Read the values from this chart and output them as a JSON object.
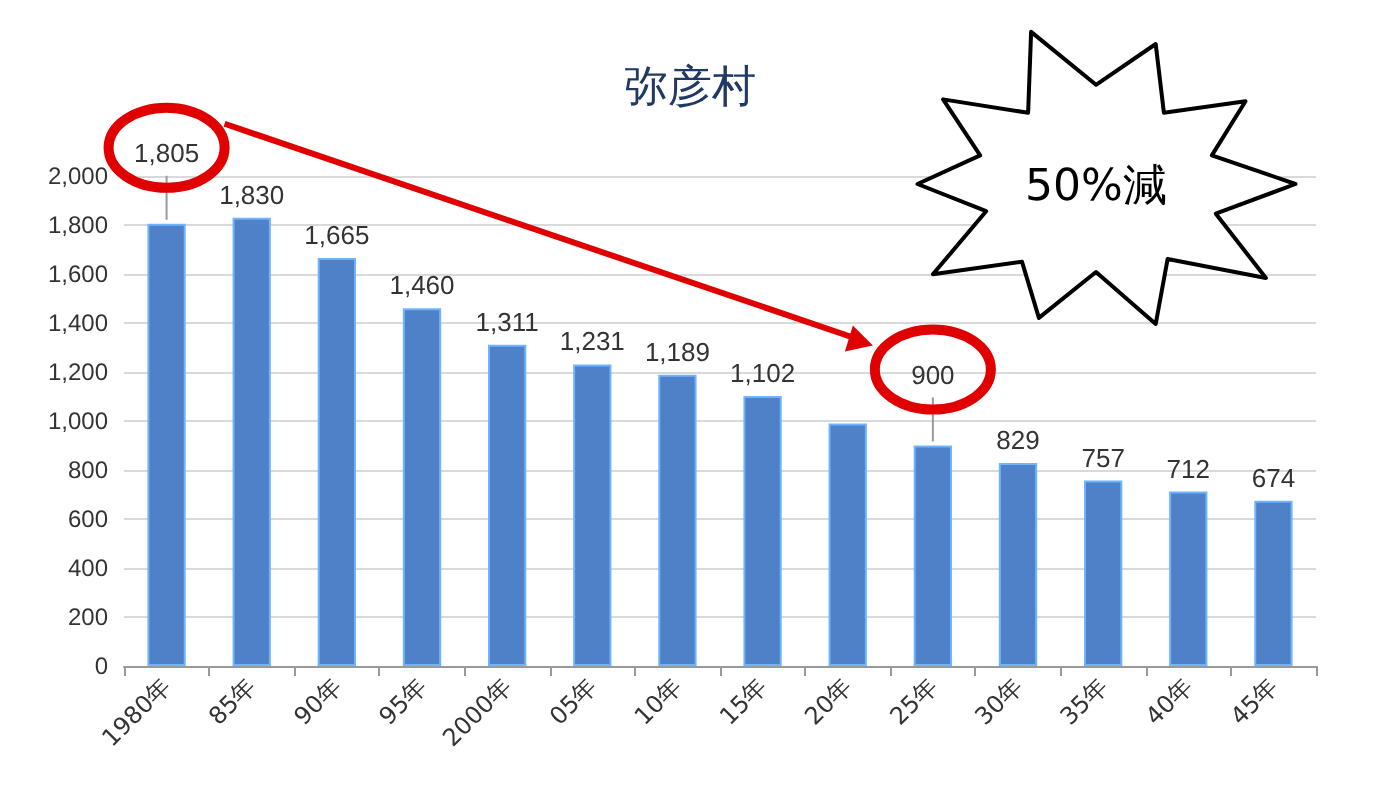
{
  "chart_data": {
    "type": "bar",
    "title": "弥彦村",
    "categories": [
      "1980年",
      "85年",
      "90年",
      "95年",
      "2000年",
      "05年",
      "10年",
      "15年",
      "20年",
      "25年",
      "30年",
      "35年",
      "40年",
      "45年"
    ],
    "values": [
      1805,
      1830,
      1665,
      1460,
      1311,
      1231,
      1189,
      1102,
      990,
      900,
      829,
      757,
      712,
      674
    ],
    "value_labels": [
      "1,805",
      "1,830",
      "1,665",
      "1,460",
      "1,311",
      "1,231",
      "1,189",
      "1,102",
      null,
      "900",
      "829",
      "757",
      "712",
      "674"
    ],
    "color": "#4f81c9",
    "ylim": [
      0,
      2000
    ],
    "yticks": [
      0,
      200,
      400,
      600,
      800,
      {
        "value": 1000,
        "label": "1,000"
      },
      {
        "value": 1200,
        "label": "1,200"
      },
      {
        "value": 1400,
        "label": "1,400"
      },
      {
        "value": 1600,
        "label": "1,600"
      },
      {
        "value": 1800,
        "label": "1,800"
      },
      {
        "value": 2000,
        "label": "2,000"
      }
    ],
    "grid": "y",
    "annotations": [
      "50%減"
    ]
  }
}
